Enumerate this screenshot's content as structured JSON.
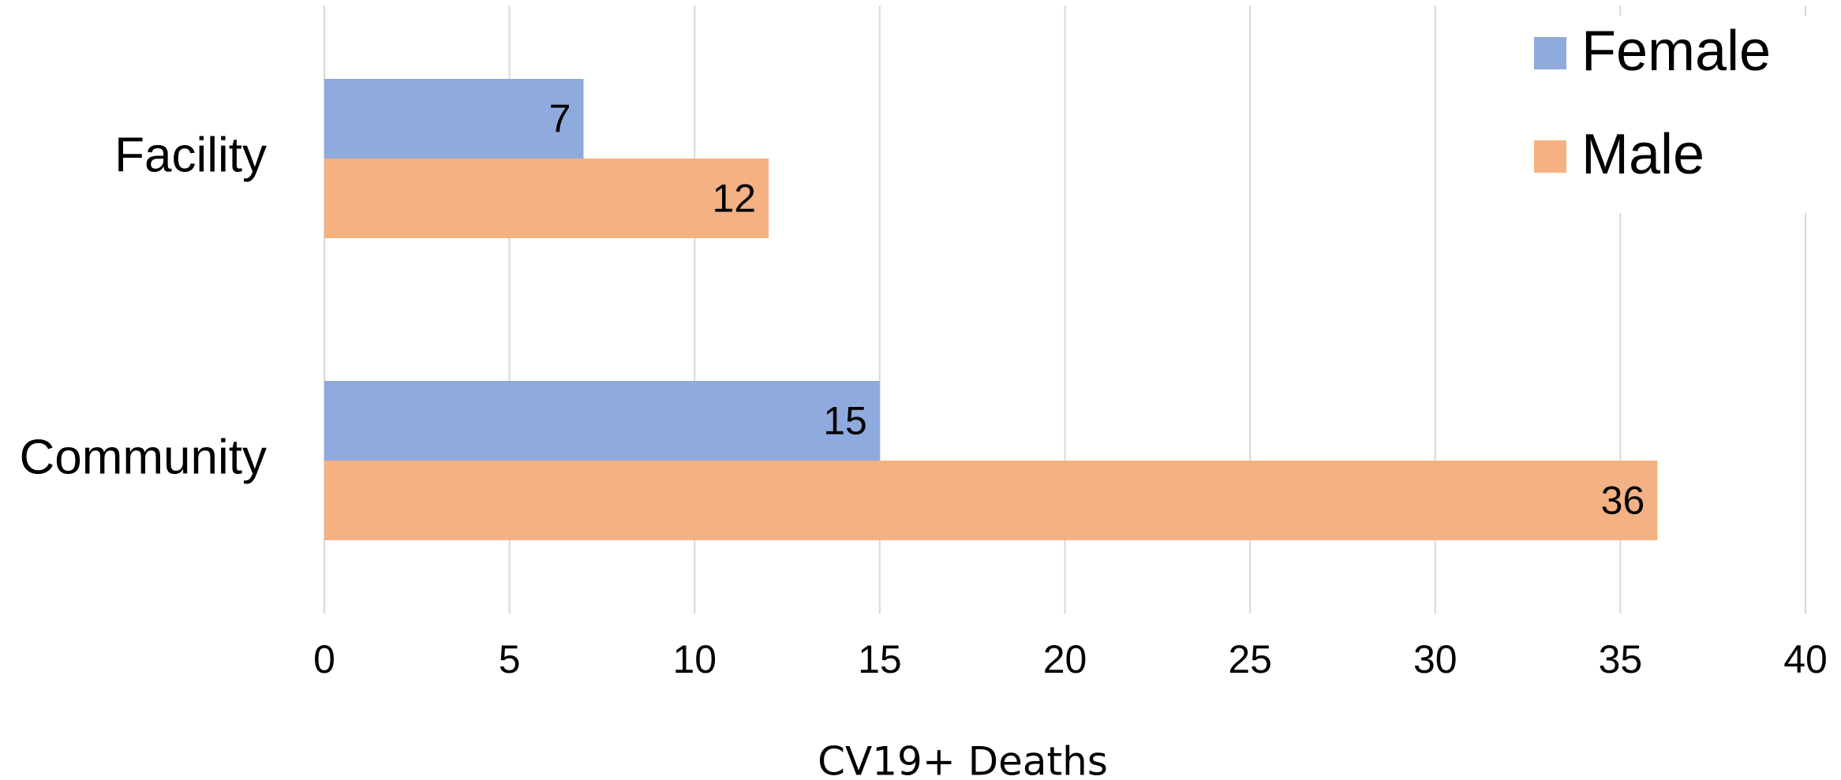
{
  "chart_data": {
    "type": "hbar",
    "x_label": "CV19+ Deaths",
    "categories": [
      "Facility",
      "Community"
    ],
    "series": [
      {
        "name": "Female",
        "color": "#8faadc",
        "values": [
          7,
          15
        ]
      },
      {
        "name": "Male",
        "color": "#f4b183",
        "values": [
          12,
          36
        ]
      }
    ],
    "xlim": [
      0,
      40
    ],
    "xticks": [
      0,
      5,
      10,
      15,
      20,
      25,
      30,
      35,
      40
    ],
    "grid": true,
    "legend": "upper right"
  }
}
